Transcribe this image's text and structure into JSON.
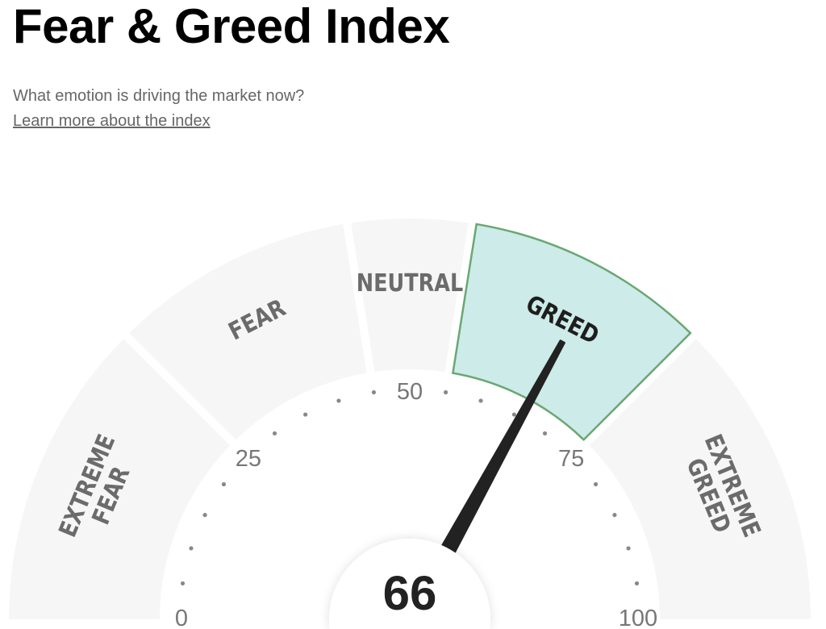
{
  "header": {
    "title": "Fear & Greed Index",
    "subtitle": "What emotion is driving the market now?",
    "learn_link": "Learn more about the index"
  },
  "chart_data": {
    "type": "gauge",
    "range": [
      0,
      100
    ],
    "value": 66,
    "value_label": "66",
    "active_segment": "GREED",
    "segments": [
      {
        "lines": [
          "EXTREME",
          "FEAR"
        ],
        "from": 0,
        "to": 25
      },
      {
        "lines": [
          "FEAR"
        ],
        "from": 25,
        "to": 45
      },
      {
        "lines": [
          "NEUTRAL"
        ],
        "from": 45,
        "to": 55
      },
      {
        "lines": [
          "GREED"
        ],
        "from": 55,
        "to": 75
      },
      {
        "lines": [
          "EXTREME",
          "GREED"
        ],
        "from": 75,
        "to": 100
      }
    ],
    "tick_labels": [
      "0",
      "25",
      "50",
      "75",
      "100"
    ],
    "minor_tick_step": 5,
    "colors": {
      "segment": "#f6f6f6",
      "active_fill": "#cdebe8",
      "active_stroke": "#6aa774",
      "needle": "#222222"
    }
  }
}
